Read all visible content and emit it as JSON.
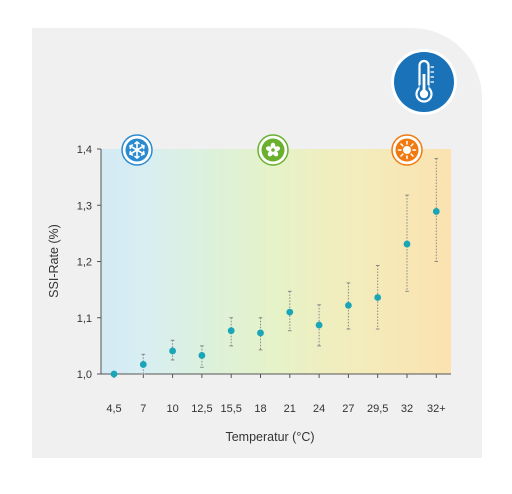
{
  "chart_data": {
    "type": "scatter",
    "title": "",
    "xlabel": "Temperatur (°C)",
    "ylabel": "SSI-Rate (%)",
    "categories": [
      "4,5",
      "7",
      "10",
      "12,5",
      "15,5",
      "18",
      "21",
      "24",
      "27",
      "29,5",
      "32",
      "32+"
    ],
    "ylim": [
      1.0,
      1.4
    ],
    "yticks": [
      "1,0",
      "1,1",
      "1,2",
      "1,3",
      "1,4"
    ],
    "grid": false,
    "legend": "none",
    "series": [
      {
        "values": [
          1.0,
          1.017,
          1.041,
          1.033,
          1.077,
          1.073,
          1.11,
          1.087,
          1.122,
          1.136,
          1.231,
          1.289
        ],
        "lower": [
          1.0,
          1.0,
          1.025,
          1.012,
          1.05,
          1.043,
          1.077,
          1.05,
          1.08,
          1.08,
          1.147,
          1.2
        ],
        "upper": [
          1.0,
          1.035,
          1.06,
          1.05,
          1.1,
          1.1,
          1.147,
          1.123,
          1.162,
          1.193,
          1.318,
          1.383
        ]
      }
    ],
    "colors": {
      "point": "#1aa6b7",
      "errorbar": "#888888",
      "cold": "#d6ecf6",
      "mild": "#e4f2c4",
      "warm": "#fbe4b0"
    },
    "zone_icons": [
      {
        "name": "snowflake-icon",
        "color": "#2a8bd0"
      },
      {
        "name": "flower-icon",
        "color": "#6ab02e"
      },
      {
        "name": "sun-icon",
        "color": "#f07a10"
      }
    ],
    "corner_icon": {
      "name": "thermometer-icon",
      "color": "#1a73b9"
    }
  }
}
